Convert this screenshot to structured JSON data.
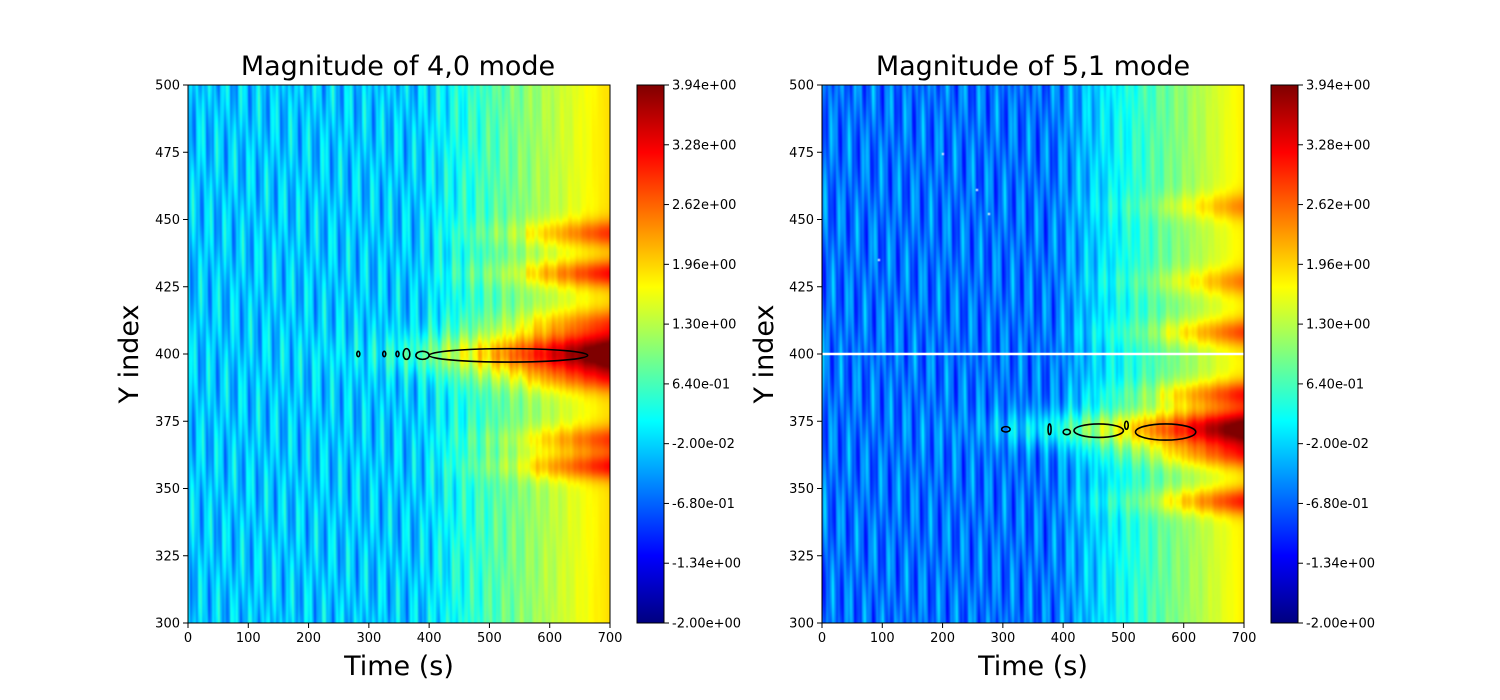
{
  "colormap": {
    "name": "jet",
    "stops": [
      "#00007f",
      "#0000ff",
      "#007fff",
      "#00ffff",
      "#7fff7f",
      "#ffff00",
      "#ff7f00",
      "#ff0000",
      "#7f0000"
    ]
  },
  "chart_data": [
    {
      "type": "heatmap",
      "title": "Magnitude of 4,0 mode",
      "xlabel": "Time (s)",
      "ylabel": "Y index",
      "xlim": [
        0,
        700
      ],
      "ylim": [
        300,
        500
      ],
      "x_ticks": [
        0,
        100,
        200,
        300,
        400,
        500,
        600,
        700
      ],
      "y_ticks": [
        300,
        325,
        350,
        375,
        400,
        425,
        450,
        475,
        500
      ],
      "colorbar": {
        "range": [
          -2.0,
          3.94
        ],
        "tick_values": [
          -2.0,
          -1.34,
          -0.68,
          -0.02,
          0.64,
          1.3,
          1.96,
          2.62,
          3.28,
          3.94
        ],
        "tick_labels": [
          "-2.00e+00",
          "-1.34e+00",
          "-6.80e-01",
          "-2.00e-02",
          "6.40e-01",
          "1.30e+00",
          "1.96e+00",
          "2.62e+00",
          "3.28e+00",
          "3.94e+00"
        ]
      },
      "contour": {
        "color": "#000000",
        "level": 3.2,
        "regions": [
          {
            "x": [
              280,
              285
            ],
            "y": [
              399,
              401
            ]
          },
          {
            "x": [
              323,
              328
            ],
            "y": [
              399,
              401
            ]
          },
          {
            "x": [
              345,
              350
            ],
            "y": [
              399,
              401
            ]
          },
          {
            "x": [
              357,
              368
            ],
            "y": [
              398,
              402
            ]
          },
          {
            "x": [
              378,
              400
            ],
            "y": [
              398,
              401
            ]
          },
          {
            "x": [
              400,
              663
            ],
            "y": [
              397,
              402
            ]
          }
        ]
      },
      "features": {
        "ridges": [
          {
            "y": 400,
            "width": 8,
            "onset": 300,
            "peak": 3.9
          }
        ],
        "secondary_bands": [
          368,
          358,
          430,
          445,
          412,
          390
        ],
        "base_level": -0.1,
        "late_level": 1.9
      }
    },
    {
      "type": "heatmap",
      "title": "Magnitude of 5,1 mode",
      "xlabel": "Time (s)",
      "ylabel": "Y index",
      "xlim": [
        0,
        700
      ],
      "ylim": [
        300,
        500
      ],
      "x_ticks": [
        0,
        100,
        200,
        300,
        400,
        500,
        600,
        700
      ],
      "y_ticks": [
        300,
        325,
        350,
        375,
        400,
        425,
        450,
        475,
        500
      ],
      "colorbar": {
        "range": [
          -2.0,
          3.94
        ],
        "tick_values": [
          -2.0,
          -1.34,
          -0.68,
          -0.02,
          0.64,
          1.3,
          1.96,
          2.62,
          3.28,
          3.94
        ],
        "tick_labels": [
          "-2.00e+00",
          "-1.34e+00",
          "-6.80e-01",
          "-2.00e-02",
          "6.40e-01",
          "1.30e+00",
          "1.96e+00",
          "2.62e+00",
          "3.28e+00",
          "3.94e+00"
        ]
      },
      "masked_row_y": 400,
      "masked_points": [
        {
          "x": 200,
          "y": 475
        },
        {
          "x": 257,
          "y": 461
        },
        {
          "x": 278,
          "y": 452
        },
        {
          "x": 95,
          "y": 435
        }
      ],
      "contour": {
        "color": "#000000",
        "level": 3.2,
        "regions": [
          {
            "x": [
              298,
              312
            ],
            "y": [
              371,
              373
            ]
          },
          {
            "x": [
              375,
              380
            ],
            "y": [
              370,
              374
            ]
          },
          {
            "x": [
              400,
              412
            ],
            "y": [
              370,
              372
            ]
          },
          {
            "x": [
              418,
              500
            ],
            "y": [
              369,
              374
            ]
          },
          {
            "x": [
              502,
              508
            ],
            "y": [
              372,
              375
            ]
          },
          {
            "x": [
              520,
              620
            ],
            "y": [
              368,
              374
            ]
          }
        ]
      },
      "features": {
        "ridges": [
          {
            "y": 372,
            "width": 7,
            "onset": 250,
            "peak": 3.7
          }
        ],
        "secondary_bands": [
          362,
          385,
          345,
          408,
          427,
          455
        ],
        "base_level": -0.6,
        "late_level": 1.8
      }
    }
  ]
}
